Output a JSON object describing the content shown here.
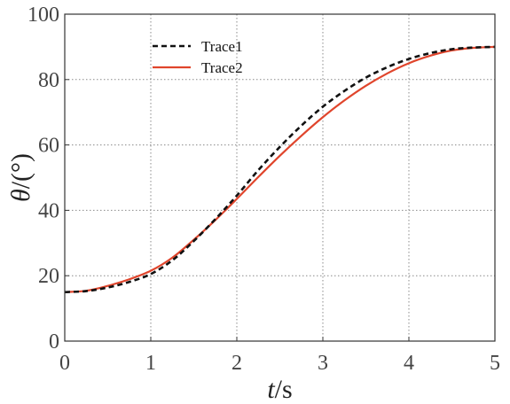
{
  "chart_data": {
    "type": "line",
    "title": "",
    "xlabel": {
      "var": "t",
      "unit": "/s"
    },
    "ylabel": {
      "var": "θ",
      "unit": "/(°)"
    },
    "xlim": [
      0,
      5
    ],
    "ylim": [
      0,
      100
    ],
    "xticks": [
      "0",
      "1",
      "2",
      "3",
      "4",
      "5"
    ],
    "yticks": [
      "0",
      "20",
      "40",
      "60",
      "80",
      "100"
    ],
    "grid": true,
    "legend_position": "top-left",
    "x": [
      0,
      0.25,
      0.5,
      0.75,
      1.0,
      1.25,
      1.5,
      1.75,
      2.0,
      2.25,
      2.5,
      2.75,
      3.0,
      3.25,
      3.5,
      3.75,
      4.0,
      4.25,
      4.5,
      4.75,
      5.0
    ],
    "series": [
      {
        "name": "Trace1",
        "style": "dashed",
        "color": "#111111",
        "values": [
          15.0,
          15.3,
          16.4,
          18.1,
          20.5,
          24.7,
          30.6,
          37.3,
          44.5,
          52.3,
          59.4,
          65.9,
          71.7,
          76.5,
          80.6,
          83.8,
          86.3,
          88.1,
          89.3,
          89.8,
          90.0
        ]
      },
      {
        "name": "Trace2",
        "style": "solid",
        "color": "#e0452c",
        "values": [
          15.0,
          15.4,
          16.9,
          18.9,
          21.5,
          25.5,
          31.0,
          37.0,
          43.5,
          50.2,
          56.7,
          62.8,
          68.5,
          73.6,
          78.1,
          81.9,
          85.0,
          87.3,
          88.9,
          89.7,
          90.0
        ]
      }
    ]
  }
}
